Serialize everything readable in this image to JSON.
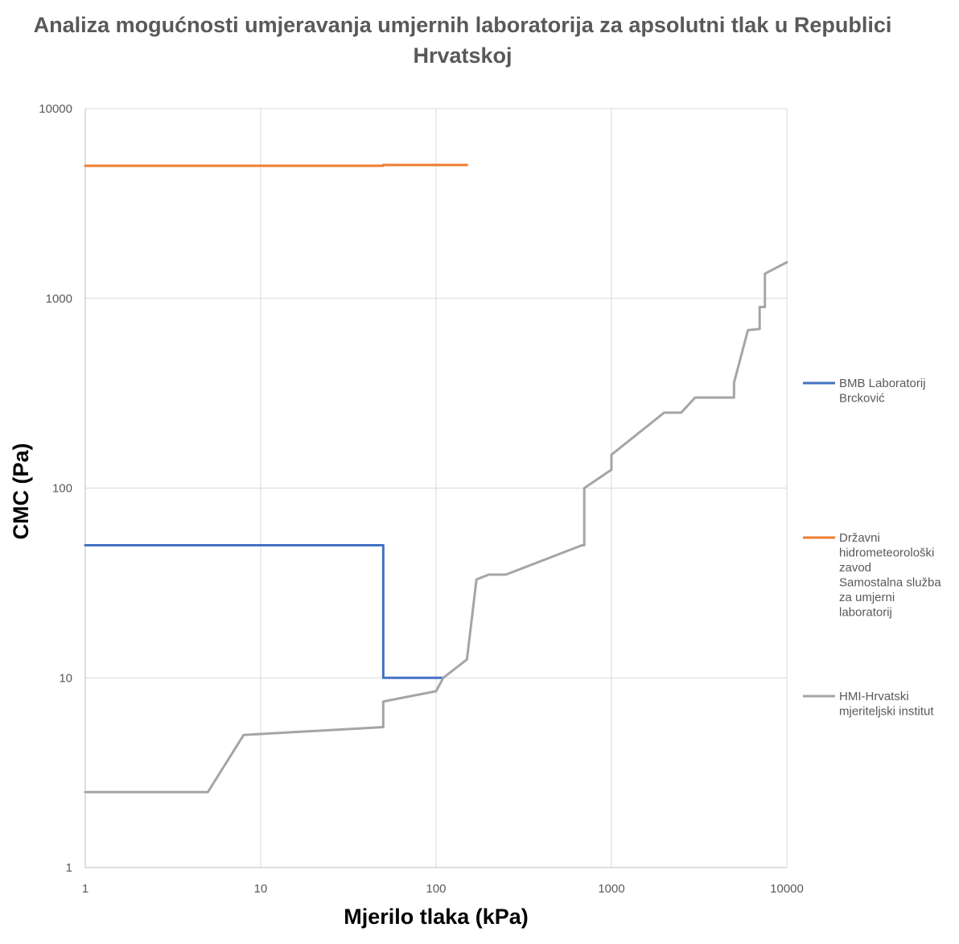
{
  "chart_data": {
    "type": "line",
    "title": "Analiza mogućnosti umjeravanja umjernih laboratorija za apsolutni tlak u Republici Hrvatskoj",
    "xlabel": "Mjerilo tlaka (kPa)",
    "ylabel": "CMC (Pa)",
    "x_scale": "log",
    "y_scale": "log",
    "xlim": [
      1,
      10000
    ],
    "ylim": [
      1,
      10000
    ],
    "x_ticks": [
      "1",
      "10",
      "100",
      "1000",
      "10000"
    ],
    "y_ticks": [
      "1",
      "10",
      "100",
      "1000",
      "10000"
    ],
    "grid": true,
    "legend_position": "right",
    "series": [
      {
        "name": "BMB Laboratorij Brcković",
        "legend_lines": [
          "BMB Laboratorij",
          "Brcković"
        ],
        "color": "#4472C4",
        "points": [
          [
            1,
            50
          ],
          [
            50,
            50
          ],
          [
            50,
            10
          ],
          [
            110,
            10
          ]
        ]
      },
      {
        "name": "Državni hidrometeorološki zavod Samostalna služba za umjerni laboratorij",
        "legend_lines": [
          "Državni",
          "hidrometeorološki",
          "zavod",
          "Samostalna služba",
          "za umjerni",
          "laboratorij"
        ],
        "color": "#ED7D31",
        "points": [
          [
            1,
            5000
          ],
          [
            50,
            5000
          ],
          [
            50,
            5050
          ],
          [
            150,
            5050
          ]
        ]
      },
      {
        "name": "HMI-Hrvatski mjeriteljski institut",
        "legend_lines": [
          "HMI-Hrvatski",
          "mjeriteljski institut"
        ],
        "color": "#A5A5A5",
        "points": [
          [
            1,
            2.5
          ],
          [
            5,
            2.5
          ],
          [
            8,
            5
          ],
          [
            50,
            5.5
          ],
          [
            50,
            7.5
          ],
          [
            100,
            8.5
          ],
          [
            110,
            10
          ],
          [
            150,
            12.5
          ],
          [
            170,
            33
          ],
          [
            200,
            35
          ],
          [
            250,
            35
          ],
          [
            680,
            50
          ],
          [
            700,
            50
          ],
          [
            700,
            100
          ],
          [
            1000,
            125
          ],
          [
            1000,
            150
          ],
          [
            2000,
            250
          ],
          [
            2500,
            250
          ],
          [
            3000,
            300
          ],
          [
            5000,
            300
          ],
          [
            5000,
            360
          ],
          [
            6000,
            680
          ],
          [
            7000,
            690
          ],
          [
            7000,
            900
          ],
          [
            7500,
            900
          ],
          [
            7500,
            1350
          ],
          [
            10000,
            1550
          ]
        ]
      }
    ]
  }
}
